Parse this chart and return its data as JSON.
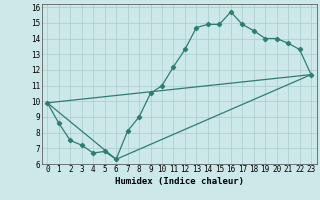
{
  "title": "",
  "xlabel": "Humidex (Indice chaleur)",
  "bg_color": "#cde8e8",
  "line_color": "#2e7d72",
  "grid_color": "#aacccc",
  "grid_color2": "#99bbbb",
  "xlim": [
    -0.5,
    23.5
  ],
  "ylim": [
    6,
    16.2
  ],
  "xticks": [
    0,
    1,
    2,
    3,
    4,
    5,
    6,
    7,
    8,
    9,
    10,
    11,
    12,
    13,
    14,
    15,
    16,
    17,
    18,
    19,
    20,
    21,
    22,
    23
  ],
  "yticks": [
    6,
    7,
    8,
    9,
    10,
    11,
    12,
    13,
    14,
    15,
    16
  ],
  "curve1_x": [
    0,
    1,
    2,
    3,
    4,
    5,
    6,
    7,
    8,
    9,
    10,
    11,
    12,
    13,
    14,
    15,
    16,
    17,
    18,
    19,
    20,
    21,
    22,
    23
  ],
  "curve1_y": [
    9.9,
    8.6,
    7.5,
    7.2,
    6.7,
    6.8,
    6.3,
    8.1,
    9.0,
    10.5,
    11.0,
    12.2,
    13.3,
    14.7,
    14.9,
    14.9,
    15.7,
    14.9,
    14.5,
    14.0,
    14.0,
    13.7,
    13.3,
    11.7
  ],
  "curve2_x": [
    0,
    23
  ],
  "curve2_y": [
    9.9,
    11.7
  ],
  "curve3_x": [
    0,
    6,
    23
  ],
  "curve3_y": [
    9.9,
    6.3,
    11.7
  ],
  "tick_fontsize": 5.5,
  "xlabel_fontsize": 6.5,
  "marker_size": 2.2,
  "linewidth": 0.9
}
